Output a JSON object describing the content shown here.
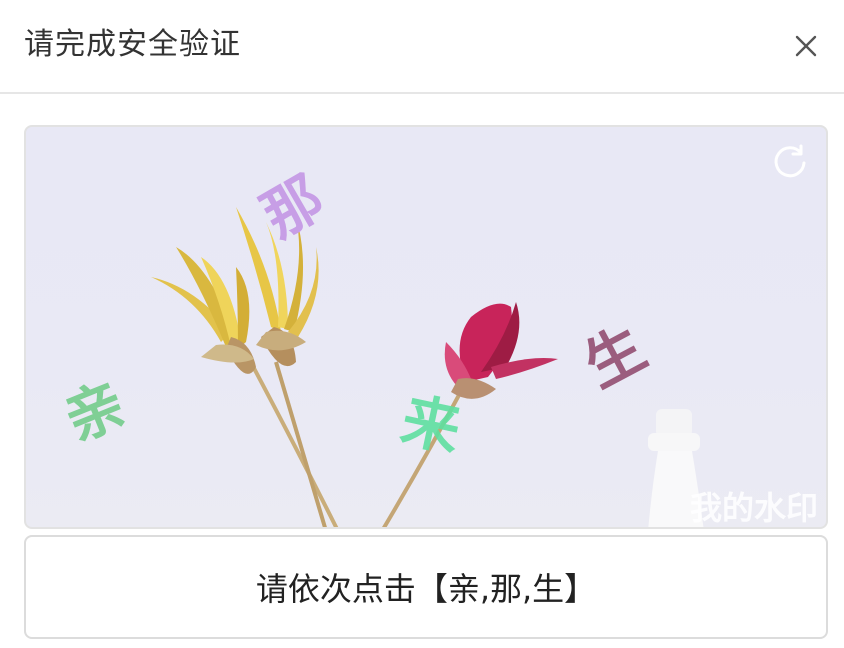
{
  "dialog": {
    "title": "请完成安全验证",
    "close_icon": "close-icon"
  },
  "captcha": {
    "refresh_icon": "refresh-icon",
    "watermark": "我的水印",
    "characters": [
      {
        "text": "亲",
        "color": "#7fcf95"
      },
      {
        "text": "那",
        "color": "#c79ee6"
      },
      {
        "text": "生",
        "color": "#9b5d7e"
      },
      {
        "text": "来",
        "color": "#5fe0a0"
      }
    ]
  },
  "prompt": {
    "text": "请依次点击【亲,那,生】"
  }
}
